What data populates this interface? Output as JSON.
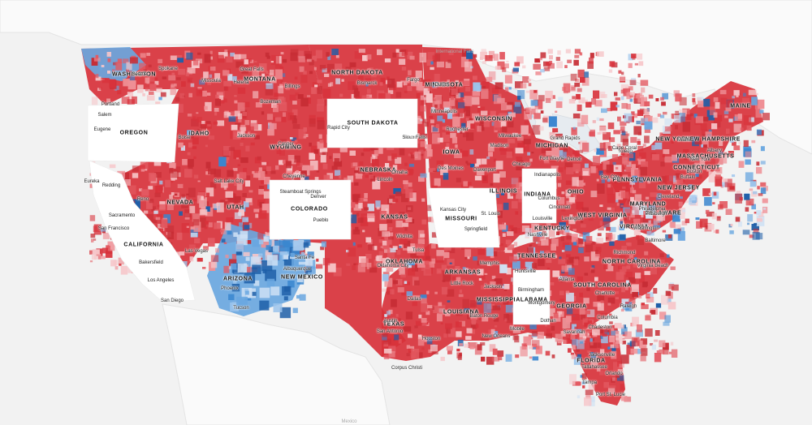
{
  "map": {
    "palette": {
      "background": "#f2f2f2",
      "land": "#fbfbfb",
      "no_data": "#ffffff",
      "lean_republican_colors": [
        "#f6c6c9",
        "#ef8f95",
        "#e35a62",
        "#d8323b",
        "#c72d35"
      ],
      "lean_democrat_colors": [
        "#cfe1f4",
        "#9cc4ec",
        "#6aa7e0",
        "#3a86cf",
        "#1f5fa8"
      ]
    },
    "regions": [
      {
        "name": "west-region",
        "lean": "republican"
      },
      {
        "name": "plains-region",
        "lean": "republican"
      },
      {
        "name": "midwest-region",
        "lean": "republican"
      },
      {
        "name": "south-region",
        "lean": "republican"
      },
      {
        "name": "northeast-region",
        "lean": "republican"
      },
      {
        "name": "florida-region",
        "lean": "republican"
      },
      {
        "name": "southwest-region",
        "lean": "democrat"
      },
      {
        "name": "pacific-northwest-region",
        "lean": "democrat"
      }
    ],
    "blank_states": [
      "OREGON",
      "SOUTH DAKOTA",
      "COLORADO",
      "MISSOURI",
      "INDIANA",
      "ALABAMA",
      "CALIFORNIA"
    ],
    "geo_labels": [
      "International Falls",
      "Sioux Falls",
      "Mexico"
    ],
    "state_labels": [
      "WASHINGTON",
      "OREGON",
      "IDAHO",
      "MONTANA",
      "WYOMING",
      "NORTH DAKOTA",
      "SOUTH DAKOTA",
      "NEBRASKA",
      "NEVADA",
      "UTAH",
      "COLORADO",
      "CALIFORNIA",
      "ARIZONA",
      "NEW MEXICO",
      "KANSAS",
      "OKLAHOMA",
      "TEXAS",
      "MINNESOTA",
      "IOWA",
      "MISSOURI",
      "ARKANSAS",
      "LOUISIANA",
      "WISCONSIN",
      "ILLINOIS",
      "MICHIGAN",
      "INDIANA",
      "OHIO",
      "KENTUCKY",
      "TENNESSEE",
      "MISSISSIPPI",
      "ALABAMA",
      "GEORGIA",
      "FLORIDA",
      "SOUTH CAROLINA",
      "NORTH CAROLINA",
      "VIRGINIA",
      "WEST VIRGINIA",
      "PENNSYLVANIA",
      "NEW YORK",
      "MAINE",
      "NEW HAMPSHIRE",
      "MASSACHUSETTS",
      "CONNECTICUT",
      "NEW JERSEY",
      "MARYLAND",
      "DELAWARE"
    ],
    "city_labels": [
      "Spokane",
      "Seattle",
      "Portland",
      "Salem",
      "Eugene",
      "Missoula",
      "Great Falls",
      "Helena",
      "Billings",
      "Bozeman",
      "Boise",
      "Jackson",
      "Casper",
      "Cheyenne",
      "Bismarck",
      "Fargo",
      "Rapid City",
      "Sioux Falls",
      "Eureka",
      "Redding",
      "Sacramento",
      "San Francisco",
      "Reno",
      "Salt Lake City",
      "Steamboat Springs",
      "Denver",
      "Pueblo",
      "Las Vegas",
      "Bakersfield",
      "Los Angeles",
      "San Diego",
      "Phoenix",
      "Tucson",
      "Santa Fe",
      "Albuquerque",
      "Omaha",
      "Lincoln",
      "Des Moines",
      "Wichita",
      "Tulsa",
      "Oklahoma City",
      "Dallas",
      "Austin",
      "Houston",
      "San Antonio",
      "Corpus Christi",
      "Duluth",
      "Minneapolis",
      "Rochester",
      "Madison",
      "Milwaukee",
      "Chicago",
      "Davenport",
      "St. Louis",
      "Kansas City",
      "Springfield",
      "Little Rock",
      "Memphis",
      "Jackson",
      "New Orleans",
      "Baton Rouge",
      "Mobile",
      "Huntsville",
      "Birmingham",
      "Montgomery",
      "Dothan",
      "Atlanta",
      "Nashville",
      "Louisville",
      "Lexington",
      "Cincinnati",
      "Columbus",
      "Indianapolis",
      "Fort Wayne",
      "Detroit",
      "Grand Rapids",
      "Toledo",
      "Bay City",
      "Cleveland",
      "Pittsburgh",
      "Philadelphia",
      "Washington",
      "Baltimore",
      "Richmond",
      "Virginia Beach",
      "Charlotte",
      "Raleigh",
      "Columbia",
      "Charleston",
      "Savannah",
      "Jacksonville",
      "Tallahassee",
      "Orlando",
      "Tampa",
      "Port St. Lucie",
      "Cape Coral",
      "Miami",
      "Buffalo",
      "Albany",
      "New York",
      "Boston",
      "Portland",
      "Hartford"
    ]
  }
}
